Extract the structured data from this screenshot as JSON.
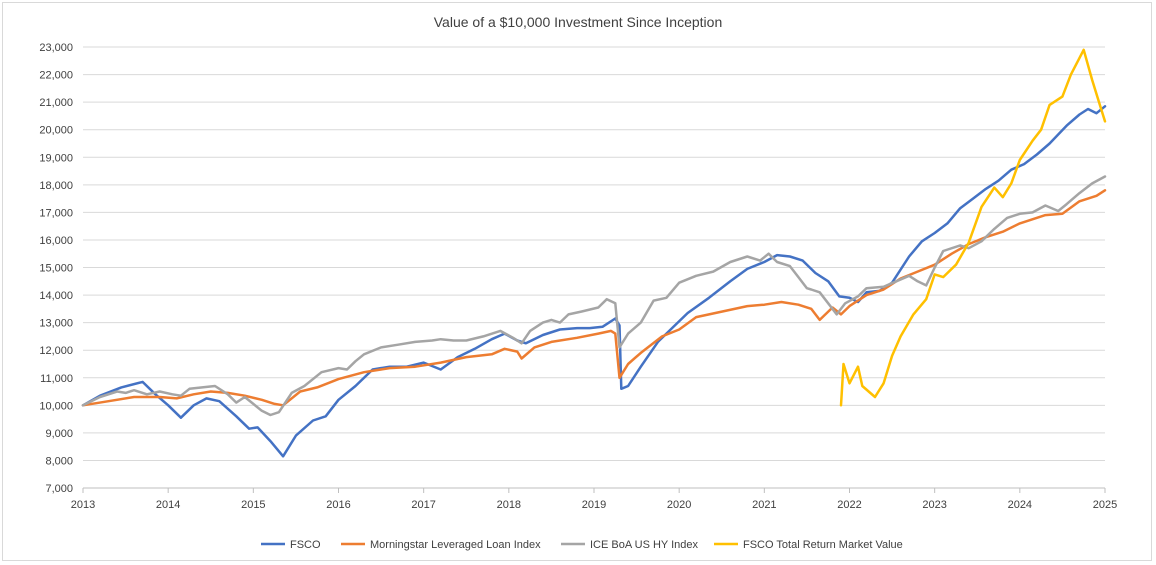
{
  "chart_data": {
    "type": "line",
    "title": "Value of a $10,000 Investment Since Inception",
    "xlabel": "",
    "ylabel": "",
    "xlim": [
      2013,
      2025
    ],
    "ylim": [
      7000,
      23000
    ],
    "x_ticks": [
      "2013",
      "2014",
      "2015",
      "2016",
      "2017",
      "2018",
      "2019",
      "2020",
      "2021",
      "2022",
      "2023",
      "2024",
      "2025"
    ],
    "y_ticks": [
      "7,000",
      "8,000",
      "9,000",
      "10,000",
      "11,000",
      "12,000",
      "13,000",
      "14,000",
      "15,000",
      "16,000",
      "17,000",
      "18,000",
      "19,000",
      "20,000",
      "21,000",
      "22,000",
      "23,000"
    ],
    "grid": "horizontal",
    "legend_position": "bottom",
    "series": [
      {
        "name": "FSCO",
        "color": "#4472C4",
        "points": [
          [
            2013.0,
            10000
          ],
          [
            2013.2,
            10350
          ],
          [
            2013.45,
            10650
          ],
          [
            2013.7,
            10850
          ],
          [
            2013.85,
            10400
          ],
          [
            2014.0,
            10000
          ],
          [
            2014.15,
            9550
          ],
          [
            2014.3,
            10000
          ],
          [
            2014.45,
            10250
          ],
          [
            2014.6,
            10150
          ],
          [
            2014.8,
            9600
          ],
          [
            2014.95,
            9150
          ],
          [
            2015.05,
            9200
          ],
          [
            2015.2,
            8700
          ],
          [
            2015.35,
            8150
          ],
          [
            2015.5,
            8900
          ],
          [
            2015.7,
            9450
          ],
          [
            2015.85,
            9600
          ],
          [
            2016.0,
            10200
          ],
          [
            2016.2,
            10700
          ],
          [
            2016.4,
            11300
          ],
          [
            2016.6,
            11400
          ],
          [
            2016.8,
            11400
          ],
          [
            2017.0,
            11550
          ],
          [
            2017.2,
            11300
          ],
          [
            2017.4,
            11750
          ],
          [
            2017.6,
            12050
          ],
          [
            2017.8,
            12400
          ],
          [
            2017.95,
            12600
          ],
          [
            2018.1,
            12350
          ],
          [
            2018.2,
            12250
          ],
          [
            2018.4,
            12550
          ],
          [
            2018.6,
            12750
          ],
          [
            2018.8,
            12800
          ],
          [
            2018.95,
            12800
          ],
          [
            2019.1,
            12850
          ],
          [
            2019.25,
            13150
          ],
          [
            2019.3,
            12900
          ],
          [
            2019.32,
            10600
          ],
          [
            2019.4,
            10700
          ],
          [
            2019.55,
            11400
          ],
          [
            2019.75,
            12300
          ],
          [
            2019.95,
            12900
          ],
          [
            2020.1,
            13350
          ],
          [
            2020.35,
            13900
          ],
          [
            2020.6,
            14500
          ],
          [
            2020.8,
            14950
          ],
          [
            2021.0,
            15200
          ],
          [
            2021.15,
            15450
          ],
          [
            2021.3,
            15400
          ],
          [
            2021.45,
            15250
          ],
          [
            2021.6,
            14800
          ],
          [
            2021.75,
            14500
          ],
          [
            2021.88,
            13950
          ],
          [
            2022.0,
            13900
          ],
          [
            2022.1,
            13750
          ],
          [
            2022.2,
            14100
          ],
          [
            2022.35,
            14150
          ],
          [
            2022.5,
            14450
          ],
          [
            2022.7,
            15400
          ],
          [
            2022.85,
            15950
          ],
          [
            2023.0,
            16250
          ],
          [
            2023.15,
            16600
          ],
          [
            2023.3,
            17150
          ],
          [
            2023.45,
            17500
          ],
          [
            2023.6,
            17850
          ],
          [
            2023.75,
            18150
          ],
          [
            2023.9,
            18550
          ],
          [
            2024.05,
            18750
          ],
          [
            2024.2,
            19100
          ],
          [
            2024.35,
            19500
          ],
          [
            2024.55,
            20150
          ],
          [
            2024.7,
            20550
          ],
          [
            2024.8,
            20750
          ],
          [
            2024.9,
            20600
          ],
          [
            2025.0,
            20850
          ]
        ]
      },
      {
        "name": "Morningstar Leveraged Loan Index",
        "color": "#ED7D31",
        "points": [
          [
            2013.0,
            10000
          ],
          [
            2013.3,
            10150
          ],
          [
            2013.6,
            10300
          ],
          [
            2013.9,
            10300
          ],
          [
            2014.1,
            10250
          ],
          [
            2014.3,
            10400
          ],
          [
            2014.5,
            10500
          ],
          [
            2014.7,
            10450
          ],
          [
            2014.9,
            10350
          ],
          [
            2015.1,
            10200
          ],
          [
            2015.25,
            10050
          ],
          [
            2015.35,
            10000
          ],
          [
            2015.55,
            10500
          ],
          [
            2015.75,
            10650
          ],
          [
            2016.0,
            10950
          ],
          [
            2016.3,
            11200
          ],
          [
            2016.6,
            11350
          ],
          [
            2016.9,
            11400
          ],
          [
            2017.2,
            11550
          ],
          [
            2017.5,
            11750
          ],
          [
            2017.8,
            11850
          ],
          [
            2017.95,
            12050
          ],
          [
            2018.1,
            11950
          ],
          [
            2018.15,
            11700
          ],
          [
            2018.3,
            12100
          ],
          [
            2018.5,
            12300
          ],
          [
            2018.8,
            12450
          ],
          [
            2019.05,
            12600
          ],
          [
            2019.2,
            12700
          ],
          [
            2019.25,
            12600
          ],
          [
            2019.3,
            11000
          ],
          [
            2019.4,
            11500
          ],
          [
            2019.55,
            11900
          ],
          [
            2019.8,
            12500
          ],
          [
            2020.0,
            12750
          ],
          [
            2020.2,
            13200
          ],
          [
            2020.5,
            13400
          ],
          [
            2020.8,
            13600
          ],
          [
            2021.0,
            13650
          ],
          [
            2021.2,
            13750
          ],
          [
            2021.4,
            13650
          ],
          [
            2021.55,
            13500
          ],
          [
            2021.65,
            13100
          ],
          [
            2021.8,
            13550
          ],
          [
            2021.9,
            13300
          ],
          [
            2022.0,
            13600
          ],
          [
            2022.2,
            14000
          ],
          [
            2022.4,
            14200
          ],
          [
            2022.6,
            14600
          ],
          [
            2022.8,
            14850
          ],
          [
            2023.0,
            15100
          ],
          [
            2023.2,
            15500
          ],
          [
            2023.4,
            15850
          ],
          [
            2023.6,
            16100
          ],
          [
            2023.8,
            16300
          ],
          [
            2024.0,
            16600
          ],
          [
            2024.3,
            16900
          ],
          [
            2024.5,
            16950
          ],
          [
            2024.7,
            17400
          ],
          [
            2024.9,
            17600
          ],
          [
            2025.0,
            17800
          ]
        ]
      },
      {
        "name": "ICE BoA US HY Index",
        "color": "#A5A5A5",
        "points": [
          [
            2013.0,
            10000
          ],
          [
            2013.2,
            10300
          ],
          [
            2013.4,
            10500
          ],
          [
            2013.5,
            10450
          ],
          [
            2013.6,
            10550
          ],
          [
            2013.75,
            10400
          ],
          [
            2013.9,
            10500
          ],
          [
            2014.05,
            10400
          ],
          [
            2014.15,
            10350
          ],
          [
            2014.25,
            10600
          ],
          [
            2014.4,
            10650
          ],
          [
            2014.55,
            10700
          ],
          [
            2014.7,
            10400
          ],
          [
            2014.8,
            10100
          ],
          [
            2014.9,
            10300
          ],
          [
            2015.0,
            10050
          ],
          [
            2015.1,
            9800
          ],
          [
            2015.2,
            9650
          ],
          [
            2015.3,
            9750
          ],
          [
            2015.45,
            10450
          ],
          [
            2015.6,
            10700
          ],
          [
            2015.8,
            11200
          ],
          [
            2016.0,
            11350
          ],
          [
            2016.1,
            11300
          ],
          [
            2016.2,
            11600
          ],
          [
            2016.3,
            11850
          ],
          [
            2016.5,
            12100
          ],
          [
            2016.7,
            12200
          ],
          [
            2016.9,
            12300
          ],
          [
            2017.1,
            12350
          ],
          [
            2017.2,
            12400
          ],
          [
            2017.35,
            12350
          ],
          [
            2017.5,
            12350
          ],
          [
            2017.7,
            12500
          ],
          [
            2017.9,
            12700
          ],
          [
            2018.05,
            12450
          ],
          [
            2018.15,
            12250
          ],
          [
            2018.25,
            12700
          ],
          [
            2018.4,
            13000
          ],
          [
            2018.5,
            13100
          ],
          [
            2018.6,
            13000
          ],
          [
            2018.7,
            13300
          ],
          [
            2018.85,
            13400
          ],
          [
            2019.05,
            13550
          ],
          [
            2019.15,
            13850
          ],
          [
            2019.25,
            13700
          ],
          [
            2019.3,
            12100
          ],
          [
            2019.4,
            12600
          ],
          [
            2019.55,
            13000
          ],
          [
            2019.7,
            13800
          ],
          [
            2019.85,
            13900
          ],
          [
            2020.0,
            14450
          ],
          [
            2020.2,
            14700
          ],
          [
            2020.4,
            14850
          ],
          [
            2020.6,
            15200
          ],
          [
            2020.8,
            15400
          ],
          [
            2020.95,
            15250
          ],
          [
            2021.05,
            15500
          ],
          [
            2021.15,
            15200
          ],
          [
            2021.3,
            15050
          ],
          [
            2021.4,
            14650
          ],
          [
            2021.5,
            14250
          ],
          [
            2021.55,
            14200
          ],
          [
            2021.65,
            14100
          ],
          [
            2021.75,
            13700
          ],
          [
            2021.85,
            13300
          ],
          [
            2021.95,
            13700
          ],
          [
            2022.1,
            13950
          ],
          [
            2022.2,
            14250
          ],
          [
            2022.4,
            14300
          ],
          [
            2022.55,
            14500
          ],
          [
            2022.7,
            14700
          ],
          [
            2022.8,
            14500
          ],
          [
            2022.9,
            14350
          ],
          [
            2023.0,
            15000
          ],
          [
            2023.1,
            15600
          ],
          [
            2023.3,
            15800
          ],
          [
            2023.4,
            15700
          ],
          [
            2023.55,
            15950
          ],
          [
            2023.7,
            16400
          ],
          [
            2023.85,
            16800
          ],
          [
            2024.0,
            16950
          ],
          [
            2024.15,
            17000
          ],
          [
            2024.3,
            17250
          ],
          [
            2024.45,
            17050
          ],
          [
            2024.55,
            17300
          ],
          [
            2024.7,
            17700
          ],
          [
            2024.85,
            18050
          ],
          [
            2025.0,
            18300
          ]
        ]
      },
      {
        "name": "FSCO Total Return Market Value",
        "color": "#FFC000",
        "points": [
          [
            2021.9,
            10000
          ],
          [
            2021.93,
            11500
          ],
          [
            2022.0,
            10800
          ],
          [
            2022.1,
            11400
          ],
          [
            2022.15,
            10700
          ],
          [
            2022.3,
            10300
          ],
          [
            2022.4,
            10800
          ],
          [
            2022.5,
            11800
          ],
          [
            2022.6,
            12500
          ],
          [
            2022.75,
            13300
          ],
          [
            2022.9,
            13850
          ],
          [
            2023.0,
            14750
          ],
          [
            2023.1,
            14650
          ],
          [
            2023.25,
            15100
          ],
          [
            2023.4,
            15900
          ],
          [
            2023.55,
            17200
          ],
          [
            2023.7,
            17900
          ],
          [
            2023.8,
            17550
          ],
          [
            2023.9,
            18050
          ],
          [
            2024.0,
            18900
          ],
          [
            2024.15,
            19600
          ],
          [
            2024.25,
            20000
          ],
          [
            2024.35,
            20900
          ],
          [
            2024.5,
            21200
          ],
          [
            2024.6,
            22000
          ],
          [
            2024.75,
            22900
          ],
          [
            2024.85,
            21800
          ],
          [
            2024.95,
            20800
          ],
          [
            2025.0,
            20300
          ]
        ]
      }
    ]
  }
}
